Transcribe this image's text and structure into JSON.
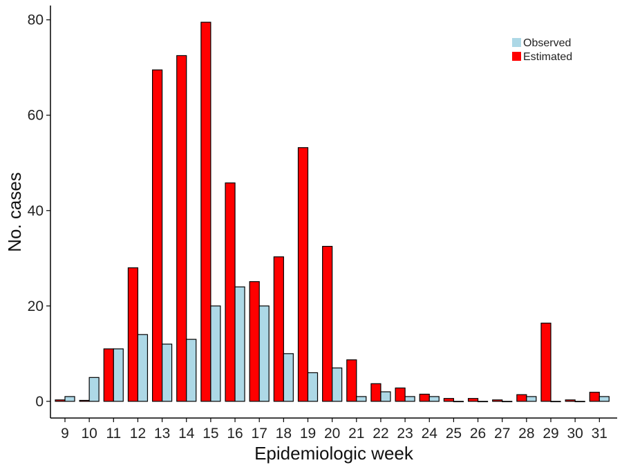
{
  "chart_data": {
    "type": "bar",
    "title": "",
    "xlabel": "Epidemiologic week",
    "ylabel": "No. cases",
    "ylim": [
      -3.5,
      83
    ],
    "yticks": [
      0,
      20,
      40,
      60,
      80
    ],
    "grid": false,
    "legend_position": "top-right",
    "categories": [
      "9",
      "10",
      "11",
      "12",
      "13",
      "14",
      "15",
      "16",
      "17",
      "18",
      "19",
      "20",
      "21",
      "22",
      "23",
      "24",
      "25",
      "26",
      "27",
      "28",
      "29",
      "30",
      "31"
    ],
    "series": [
      {
        "name": "Estimated",
        "color": "#ff0000",
        "values": [
          0.3,
          0.2,
          11,
          28,
          69.5,
          72.5,
          79.5,
          45.8,
          25.1,
          30.3,
          53.2,
          32.5,
          8.7,
          3.7,
          2.8,
          1.5,
          0.6,
          0.6,
          0.3,
          1.4,
          16.4,
          0.3,
          1.9
        ]
      },
      {
        "name": "Observed",
        "color": "#add8e6",
        "values": [
          1,
          5,
          11,
          14,
          12,
          13,
          20,
          24,
          20,
          10,
          6,
          7,
          1,
          2,
          1,
          1,
          0,
          0,
          0,
          1,
          0,
          0,
          1
        ]
      }
    ],
    "legend": [
      "Observed",
      "Estimated"
    ]
  }
}
